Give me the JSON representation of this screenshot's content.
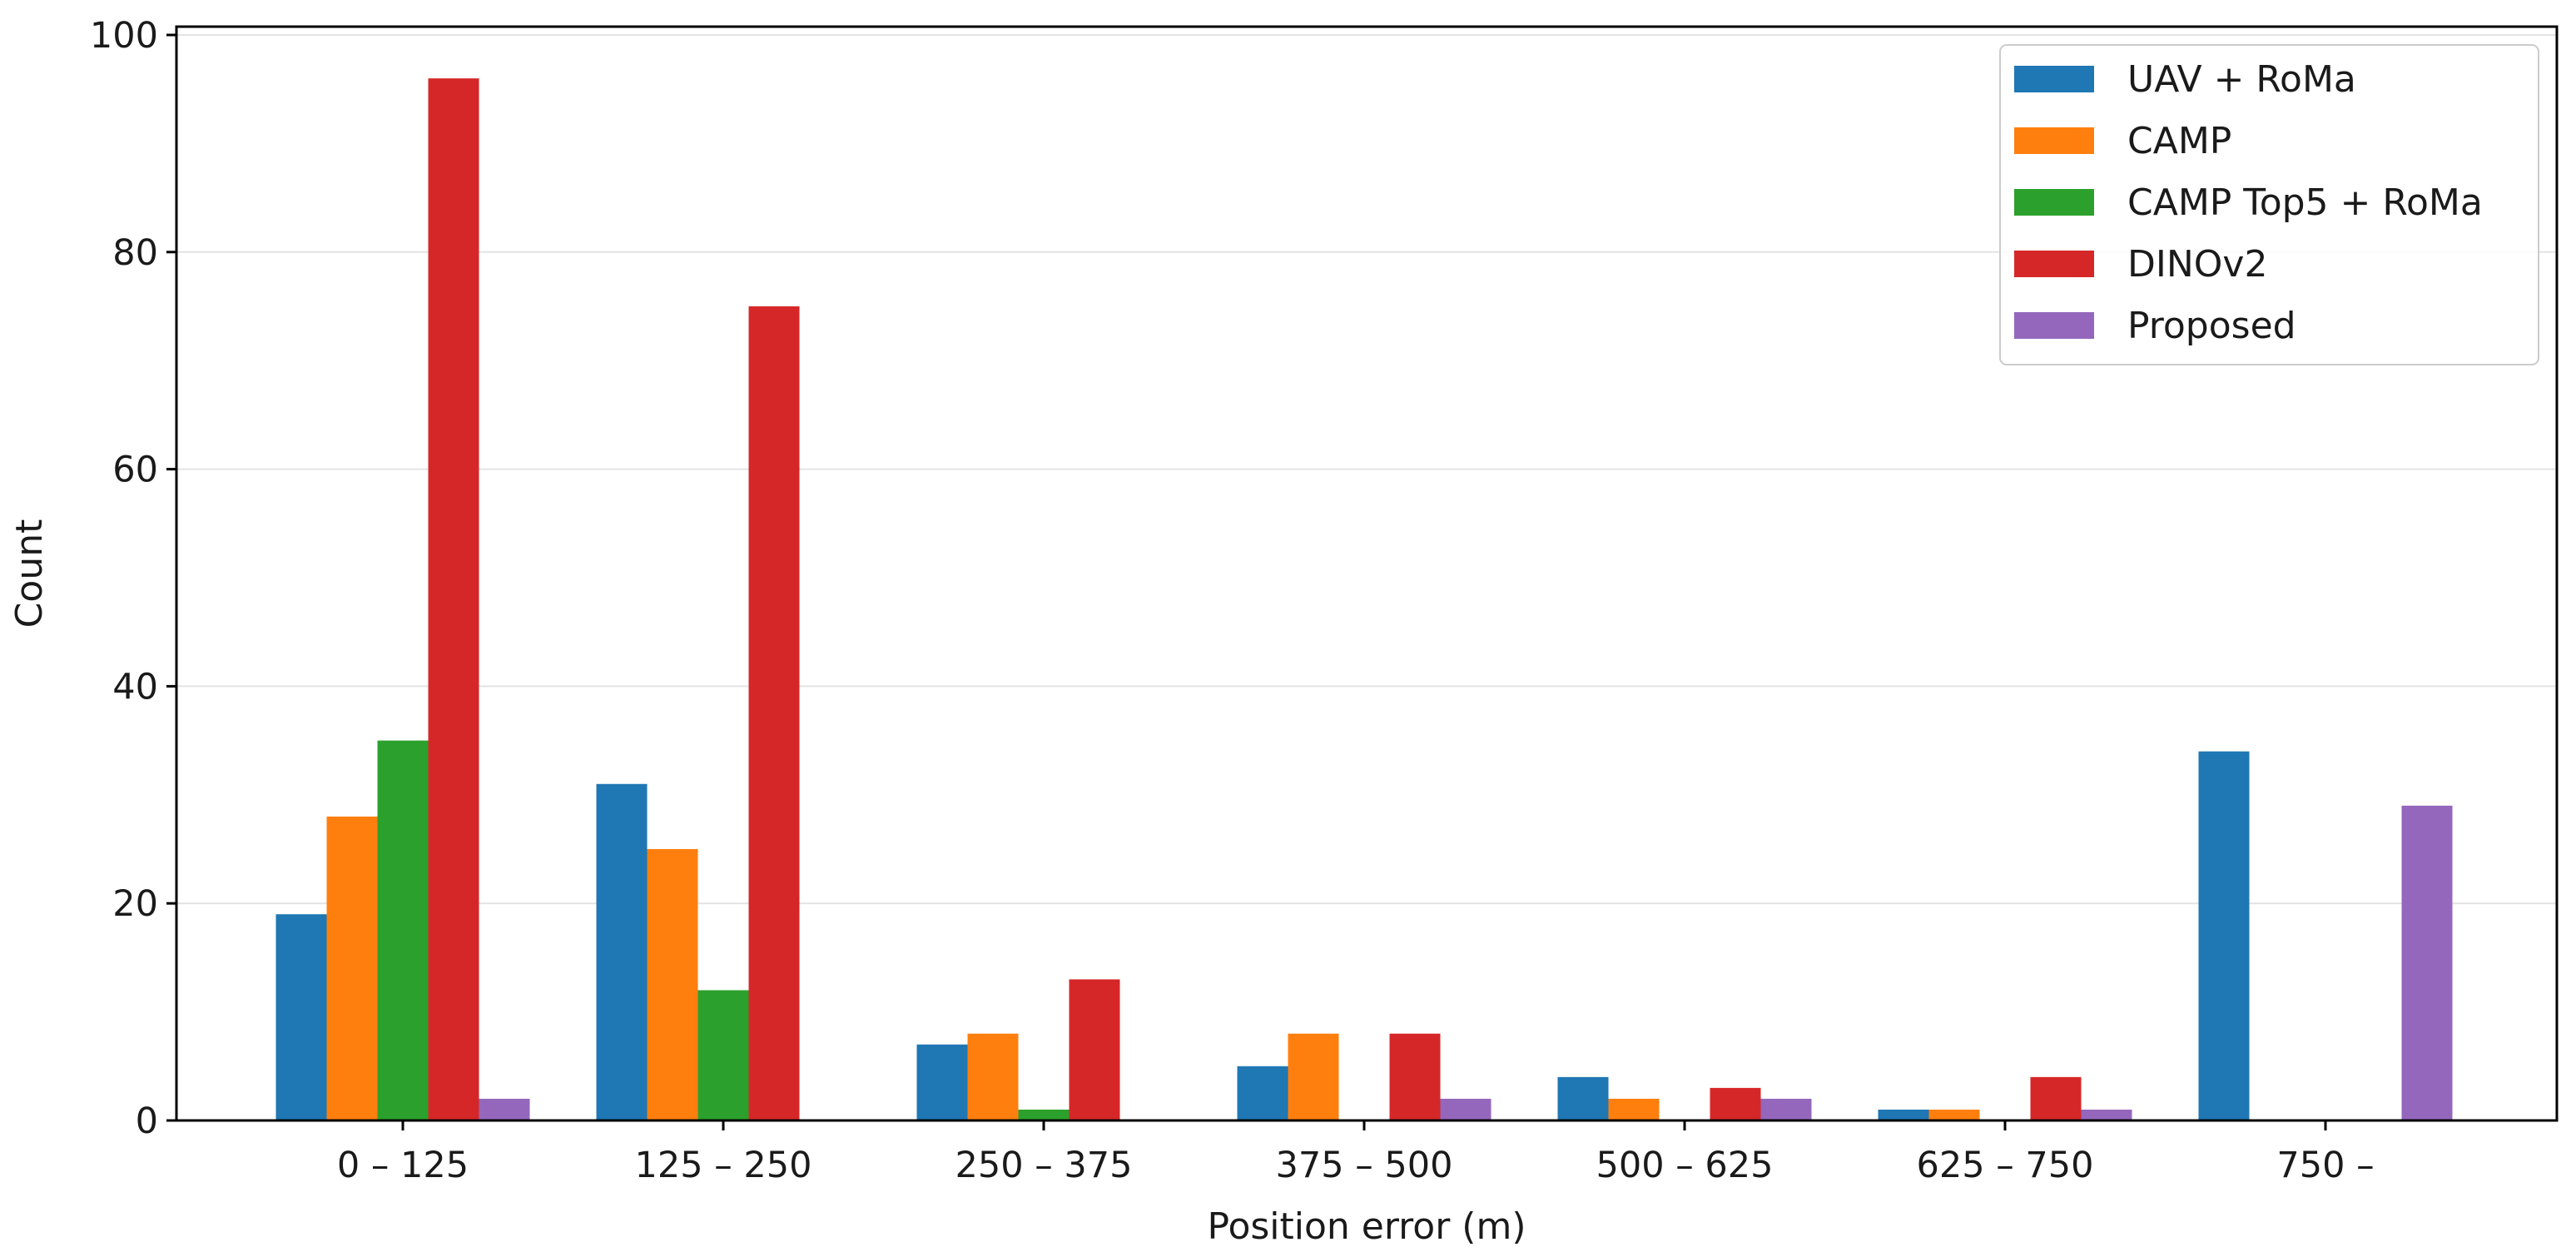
{
  "chart_data": {
    "type": "bar",
    "title": "",
    "xlabel": "Position error (m)",
    "ylabel": "Count",
    "categories": [
      "0 – 125",
      "125 – 250",
      "250 – 375",
      "375 – 500",
      "500 – 625",
      "625 – 750",
      "750 –"
    ],
    "ylim": [
      0,
      100
    ],
    "yticks": [
      0,
      20,
      40,
      60,
      80,
      100
    ],
    "grid": "horizontal",
    "legend_position": "top-right",
    "series": [
      {
        "name": "UAV + RoMa",
        "color": "#1f77b4",
        "values": [
          19,
          31,
          7,
          5,
          4,
          1,
          34
        ]
      },
      {
        "name": "CAMP",
        "color": "#ff7f0e",
        "values": [
          28,
          25,
          8,
          8,
          2,
          1,
          0
        ]
      },
      {
        "name": "CAMP Top5 + RoMa",
        "color": "#2ca02c",
        "values": [
          35,
          12,
          1,
          0,
          0,
          0,
          0
        ]
      },
      {
        "name": "DINOv2",
        "color": "#d62728",
        "values": [
          96,
          75,
          13,
          8,
          3,
          4,
          0
        ]
      },
      {
        "name": "Proposed",
        "color": "#9467bd",
        "values": [
          2,
          0,
          0,
          2,
          2,
          1,
          29
        ]
      }
    ]
  }
}
